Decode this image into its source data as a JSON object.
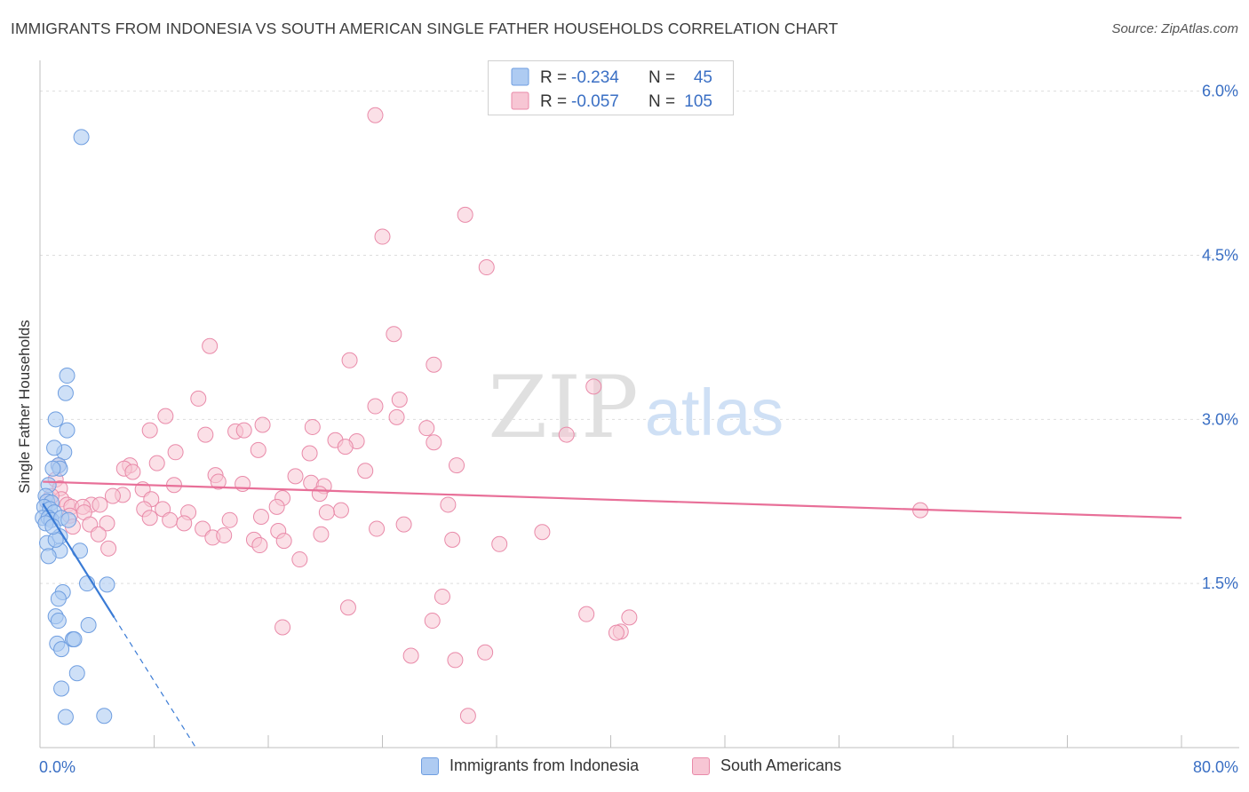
{
  "title": "IMMIGRANTS FROM INDONESIA VS SOUTH AMERICAN SINGLE FATHER HOUSEHOLDS CORRELATION CHART",
  "source": "Source: ZipAtlas.com",
  "watermark": {
    "zip": "ZIP",
    "atlas": "atlas"
  },
  "colors": {
    "blue_fill": "#aecbf2",
    "blue_stroke": "#6f9ee0",
    "blue_line": "#3a7bd5",
    "pink_fill": "#f7c6d4",
    "pink_stroke": "#e98aa9",
    "pink_line": "#e86f98",
    "value_text": "#3a6fc4",
    "grid": "#dddddd"
  },
  "legend_top": {
    "rows": [
      {
        "series": "blue",
        "r_label": "R =",
        "r_value": "-0.234",
        "n_label": "N =",
        "n_value": "45"
      },
      {
        "series": "pink",
        "r_label": "R =",
        "r_value": "-0.057",
        "n_label": "N =",
        "n_value": "105"
      }
    ]
  },
  "chart_data": {
    "type": "scatter",
    "title": "IMMIGRANTS FROM INDONESIA VS SOUTH AMERICAN SINGLE FATHER HOUSEHOLDS CORRELATION CHART",
    "xlabel": "",
    "ylabel": "Single Father Households",
    "xlim": [
      0,
      80
    ],
    "ylim": [
      0,
      6.2
    ],
    "x_tick_labels": [
      "0.0%",
      "80.0%"
    ],
    "y_ticks": [
      1.5,
      3.0,
      4.5,
      6.0
    ],
    "y_tick_labels": [
      "1.5%",
      "3.0%",
      "4.5%",
      "6.0%"
    ],
    "grid": true,
    "legend_placement": "top-center",
    "series": [
      {
        "name": "Immigrants from Indonesia",
        "color": "blue",
        "r": -0.234,
        "n": 45,
        "trend": {
          "x0": 0.2,
          "y0": 2.23,
          "x1": 5.2,
          "y1": 1.19,
          "dashed_to_x": 11.0
        },
        "points": [
          [
            2.9,
            5.58
          ],
          [
            1.9,
            3.4
          ],
          [
            1.8,
            3.24
          ],
          [
            1.1,
            3.0
          ],
          [
            1.9,
            2.9
          ],
          [
            1.7,
            2.7
          ],
          [
            1.0,
            2.74
          ],
          [
            1.3,
            2.58
          ],
          [
            1.4,
            2.55
          ],
          [
            0.9,
            2.55
          ],
          [
            0.6,
            2.4
          ],
          [
            0.4,
            2.3
          ],
          [
            0.5,
            2.25
          ],
          [
            0.8,
            2.24
          ],
          [
            0.3,
            2.2
          ],
          [
            0.7,
            2.18
          ],
          [
            1.0,
            2.15
          ],
          [
            0.2,
            2.1
          ],
          [
            0.6,
            2.1
          ],
          [
            0.8,
            2.08
          ],
          [
            1.5,
            2.1
          ],
          [
            2.0,
            2.08
          ],
          [
            0.4,
            2.05
          ],
          [
            0.5,
            1.87
          ],
          [
            1.4,
            1.93
          ],
          [
            1.4,
            1.8
          ],
          [
            2.8,
            1.8
          ],
          [
            0.6,
            1.75
          ],
          [
            1.6,
            1.42
          ],
          [
            3.3,
            1.5
          ],
          [
            4.7,
            1.49
          ],
          [
            1.3,
            1.36
          ],
          [
            1.1,
            1.2
          ],
          [
            1.3,
            1.16
          ],
          [
            3.4,
            1.12
          ],
          [
            1.2,
            0.95
          ],
          [
            1.5,
            0.9
          ],
          [
            2.3,
            0.99
          ],
          [
            2.4,
            0.99
          ],
          [
            2.6,
            0.68
          ],
          [
            1.5,
            0.54
          ],
          [
            1.8,
            0.28
          ],
          [
            4.5,
            0.29
          ],
          [
            1.1,
            1.9
          ],
          [
            0.9,
            2.02
          ]
        ]
      },
      {
        "name": "South Americans",
        "color": "pink",
        "r": -0.057,
        "n": 105,
        "trend": {
          "x0": 0.2,
          "y0": 2.43,
          "x1": 80.0,
          "y1": 2.1
        },
        "points": [
          [
            23.5,
            5.78
          ],
          [
            29.8,
            4.87
          ],
          [
            24.0,
            4.67
          ],
          [
            31.3,
            4.39
          ],
          [
            24.8,
            3.78
          ],
          [
            11.9,
            3.67
          ],
          [
            21.7,
            3.54
          ],
          [
            27.6,
            3.5
          ],
          [
            38.8,
            3.3
          ],
          [
            11.1,
            3.19
          ],
          [
            25.2,
            3.18
          ],
          [
            23.5,
            3.12
          ],
          [
            8.8,
            3.03
          ],
          [
            25.0,
            3.02
          ],
          [
            15.6,
            2.95
          ],
          [
            19.1,
            2.93
          ],
          [
            27.1,
            2.92
          ],
          [
            7.7,
            2.9
          ],
          [
            13.7,
            2.89
          ],
          [
            14.3,
            2.9
          ],
          [
            11.6,
            2.86
          ],
          [
            36.9,
            2.86
          ],
          [
            20.7,
            2.81
          ],
          [
            22.2,
            2.8
          ],
          [
            27.6,
            2.79
          ],
          [
            21.4,
            2.75
          ],
          [
            15.3,
            2.72
          ],
          [
            9.5,
            2.7
          ],
          [
            18.9,
            2.69
          ],
          [
            8.2,
            2.6
          ],
          [
            6.3,
            2.58
          ],
          [
            5.9,
            2.55
          ],
          [
            29.2,
            2.58
          ],
          [
            6.5,
            2.52
          ],
          [
            22.8,
            2.53
          ],
          [
            12.3,
            2.49
          ],
          [
            17.9,
            2.48
          ],
          [
            12.5,
            2.43
          ],
          [
            14.2,
            2.41
          ],
          [
            9.4,
            2.4
          ],
          [
            1.1,
            2.45
          ],
          [
            19.0,
            2.42
          ],
          [
            19.9,
            2.39
          ],
          [
            1.4,
            2.37
          ],
          [
            7.2,
            2.36
          ],
          [
            19.6,
            2.32
          ],
          [
            5.8,
            2.31
          ],
          [
            5.1,
            2.3
          ],
          [
            7.8,
            2.27
          ],
          [
            17.0,
            2.28
          ],
          [
            1.5,
            2.27
          ],
          [
            0.8,
            2.3
          ],
          [
            0.5,
            2.25
          ],
          [
            1.9,
            2.22
          ],
          [
            3.6,
            2.22
          ],
          [
            4.2,
            2.22
          ],
          [
            28.6,
            2.22
          ],
          [
            2.2,
            2.2
          ],
          [
            3.0,
            2.2
          ],
          [
            16.6,
            2.2
          ],
          [
            7.3,
            2.18
          ],
          [
            8.6,
            2.18
          ],
          [
            10.4,
            2.15
          ],
          [
            21.1,
            2.17
          ],
          [
            3.1,
            2.15
          ],
          [
            20.1,
            2.15
          ],
          [
            2.1,
            2.12
          ],
          [
            15.5,
            2.11
          ],
          [
            7.7,
            2.1
          ],
          [
            9.1,
            2.08
          ],
          [
            13.3,
            2.08
          ],
          [
            10.1,
            2.05
          ],
          [
            25.5,
            2.04
          ],
          [
            3.5,
            2.04
          ],
          [
            4.7,
            2.05
          ],
          [
            2.3,
            2.02
          ],
          [
            11.4,
            2.0
          ],
          [
            23.6,
            2.0
          ],
          [
            16.7,
            1.98
          ],
          [
            4.1,
            1.95
          ],
          [
            19.7,
            1.95
          ],
          [
            35.2,
            1.97
          ],
          [
            12.1,
            1.92
          ],
          [
            12.9,
            1.94
          ],
          [
            15.0,
            1.9
          ],
          [
            17.1,
            1.89
          ],
          [
            28.9,
            1.9
          ],
          [
            15.4,
            1.85
          ],
          [
            32.2,
            1.86
          ],
          [
            4.8,
            1.82
          ],
          [
            18.2,
            1.72
          ],
          [
            28.2,
            1.38
          ],
          [
            21.6,
            1.28
          ],
          [
            38.3,
            1.22
          ],
          [
            41.3,
            1.19
          ],
          [
            27.5,
            1.16
          ],
          [
            17.0,
            1.1
          ],
          [
            40.7,
            1.06
          ],
          [
            40.4,
            1.05
          ],
          [
            31.2,
            0.87
          ],
          [
            26.0,
            0.84
          ],
          [
            29.1,
            0.8
          ],
          [
            30.0,
            0.29
          ],
          [
            61.7,
            2.17
          ],
          [
            1.3,
            2.58
          ]
        ]
      }
    ]
  }
}
